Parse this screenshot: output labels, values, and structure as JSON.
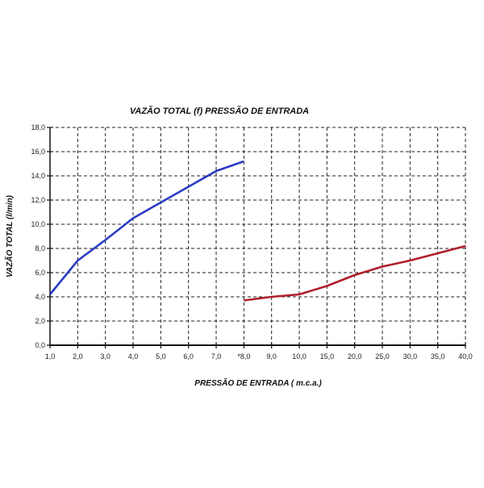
{
  "chart_data": {
    "type": "line",
    "title": "VAZÃO TOTAL (f) PRESSÃO DE ENTRADA",
    "xlabel": "PRESSÃO DE ENTRADA ( m.c.a.)",
    "ylabel": "VAZÃO TOTAL (l/min)",
    "categories": [
      "1,0",
      "2,0",
      "3,0",
      "4,0",
      "5,0",
      "6,0",
      "7,0",
      "*8,0",
      "9,0",
      "10,0",
      "15,0",
      "20,0",
      "25,0",
      "30,0",
      "35,0",
      "40,0"
    ],
    "yticks": [
      "0,0",
      "2,0",
      "4,0",
      "6,0",
      "8,0",
      "10,0",
      "12,0",
      "14,0",
      "16,0",
      "18,0"
    ],
    "ylim": [
      0,
      18
    ],
    "grid": true,
    "series": [
      {
        "color": "#2a3cc4",
        "points": [
          [
            "1,0",
            4.2
          ],
          [
            "2,0",
            7.0
          ],
          [
            "3,0",
            8.7
          ],
          [
            "4,0",
            10.5
          ],
          [
            "5,0",
            11.8
          ],
          [
            "6,0",
            13.1
          ],
          [
            "7,0",
            14.4
          ],
          [
            "*8,0",
            15.2
          ]
        ]
      },
      {
        "color": "#b01e2c",
        "points": [
          [
            "*8,0",
            3.7
          ],
          [
            "9,0",
            4.0
          ],
          [
            "10,0",
            4.2
          ],
          [
            "15,0",
            4.9
          ],
          [
            "20,0",
            5.8
          ],
          [
            "25,0",
            6.5
          ],
          [
            "30,0",
            7.0
          ],
          [
            "35,0",
            7.6
          ],
          [
            "40,0",
            8.2
          ]
        ]
      }
    ]
  }
}
